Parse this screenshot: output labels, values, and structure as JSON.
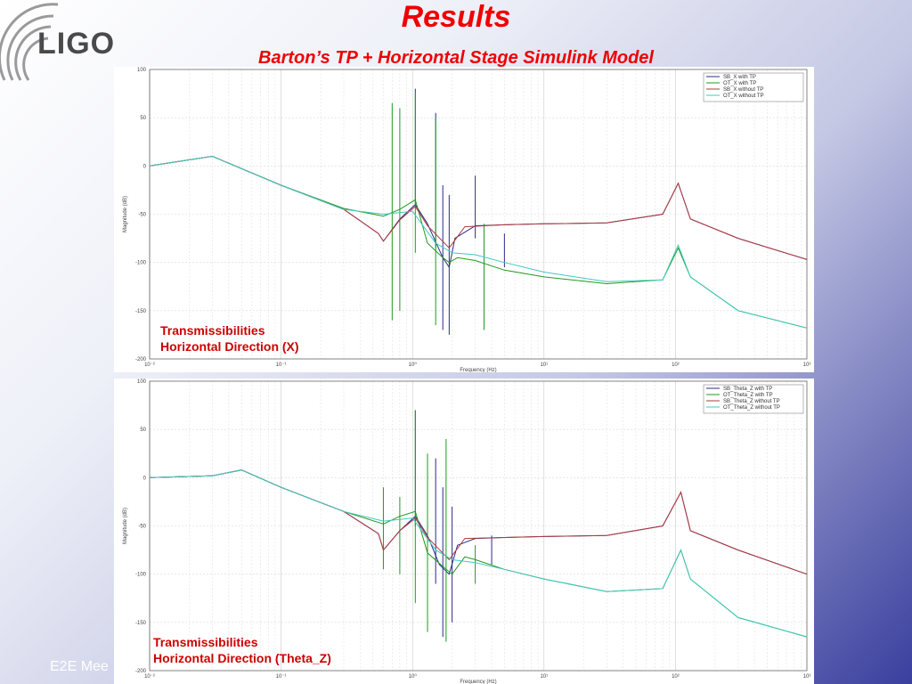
{
  "slide": {
    "logo": "LIGO",
    "title": "Results",
    "subtitle": "Barton’s TP + Horizontal Stage Simulink Model",
    "footer": "E2E Mee"
  },
  "colors": {
    "sb_with": "#2b2b8a",
    "ot_with": "#1f9a1f",
    "sb_without": "#b03a3a",
    "ot_without": "#3fc8c0",
    "title": "#ee0000"
  },
  "chart_data": [
    {
      "type": "line",
      "xscale": "log",
      "xlim": [
        0.01,
        1000
      ],
      "ylim": [
        -200,
        100
      ],
      "xticks": [
        "10⁻²",
        "10⁻¹",
        "10⁰",
        "10¹",
        "10²",
        "10³"
      ],
      "yticks": [
        "100",
        "50",
        "0",
        "-50",
        "-100",
        "-150",
        "-200"
      ],
      "xlabel": "Frequency (Hz)",
      "ylabel": "Magnitude (dB)",
      "grid": true,
      "legend_position": "top-right",
      "annotation": [
        "Transmissibilities",
        "Horizontal Direction (X)"
      ],
      "series": [
        {
          "name": "SB_X with TP",
          "color_key": "sb_with",
          "x": [
            0.01,
            0.03,
            0.1,
            0.3,
            0.55,
            0.6,
            0.8,
            1.05,
            1.3,
            1.7,
            1.9,
            2.1,
            3,
            5,
            10,
            30,
            80,
            105,
            130,
            300,
            1000
          ],
          "y": [
            0,
            10,
            -20,
            -45,
            -70,
            -78,
            -55,
            -40,
            -60,
            -95,
            -105,
            -75,
            -62,
            -61,
            -60,
            -59,
            -50,
            -18,
            -55,
            -75,
            -97
          ],
          "spikes": [
            [
              1.05,
              80,
              -42
            ],
            [
              1.5,
              55,
              -85
            ],
            [
              1.7,
              -20,
              -170
            ],
            [
              1.9,
              -30,
              -175
            ],
            [
              3,
              -10,
              -75
            ],
            [
              5,
              -70,
              -105
            ]
          ]
        },
        {
          "name": "OT_X with TP",
          "color_key": "ot_with",
          "x": [
            0.01,
            0.03,
            0.1,
            0.3,
            0.6,
            0.8,
            1.05,
            1.3,
            1.7,
            1.9,
            2.2,
            3,
            5,
            10,
            30,
            80,
            105,
            130,
            300,
            1000
          ],
          "y": [
            0,
            10,
            -20,
            -44,
            -52,
            -45,
            -35,
            -80,
            -95,
            -100,
            -95,
            -98,
            -108,
            -115,
            -122,
            -118,
            -85,
            -115,
            -150,
            -168
          ],
          "spikes": [
            [
              0.7,
              65,
              -160
            ],
            [
              0.8,
              60,
              -150
            ],
            [
              1.05,
              75,
              -90
            ],
            [
              1.5,
              50,
              -165
            ],
            [
              3.5,
              -60,
              -170
            ]
          ]
        },
        {
          "name": "SB_X without TP",
          "color_key": "sb_without",
          "x": [
            0.01,
            0.03,
            0.1,
            0.3,
            0.55,
            0.6,
            0.8,
            1.05,
            1.3,
            1.9,
            2.5,
            5,
            10,
            30,
            80,
            105,
            130,
            300,
            1000
          ],
          "y": [
            0,
            10,
            -20,
            -45,
            -70,
            -78,
            -56,
            -42,
            -62,
            -85,
            -63,
            -61,
            -60,
            -59,
            -50,
            -18,
            -55,
            -75,
            -97
          ]
        },
        {
          "name": "OT_X without TP",
          "color_key": "ot_without",
          "x": [
            0.01,
            0.03,
            0.1,
            0.3,
            0.6,
            1.0,
            1.5,
            2,
            3,
            5,
            10,
            30,
            80,
            105,
            130,
            300,
            1000
          ],
          "y": [
            0,
            10,
            -20,
            -45,
            -50,
            -47,
            -80,
            -90,
            -92,
            -100,
            -110,
            -120,
            -118,
            -82,
            -115,
            -150,
            -168
          ]
        }
      ]
    },
    {
      "type": "line",
      "xscale": "log",
      "xlim": [
        0.01,
        1000
      ],
      "ylim": [
        -200,
        100
      ],
      "xticks": [
        "10⁻²",
        "10⁻¹",
        "10⁰",
        "10¹",
        "10²",
        "10³"
      ],
      "yticks": [
        "100",
        "50",
        "0",
        "-50",
        "-100",
        "-150",
        "-200"
      ],
      "xlabel": "Frequency (Hz)",
      "ylabel": "Magnitude (dB)",
      "grid": true,
      "legend_position": "top-right",
      "annotation": [
        "Transmissibilities",
        "Horizontal Direction (Theta_Z)"
      ],
      "series": [
        {
          "name": "SB_Theta_Z with TP",
          "color_key": "sb_with",
          "x": [
            0.01,
            0.03,
            0.05,
            0.1,
            0.3,
            0.55,
            0.6,
            0.8,
            1.05,
            1.3,
            1.6,
            1.9,
            2.2,
            3,
            5,
            10,
            30,
            80,
            110,
            130,
            300,
            1000
          ],
          "y": [
            0,
            2,
            8,
            -10,
            -35,
            -58,
            -75,
            -55,
            -40,
            -60,
            -90,
            -100,
            -70,
            -63,
            -62,
            -61,
            -60,
            -50,
            -15,
            -55,
            -75,
            -100
          ],
          "spikes": [
            [
              1.05,
              70,
              -50
            ],
            [
              1.5,
              20,
              -110
            ],
            [
              1.7,
              -10,
              -165
            ],
            [
              2,
              -30,
              -150
            ],
            [
              4,
              -60,
              -90
            ]
          ]
        },
        {
          "name": "OT_Theta_Z with TP",
          "color_key": "ot_with",
          "x": [
            0.01,
            0.03,
            0.05,
            0.1,
            0.3,
            0.6,
            0.8,
            1.05,
            1.3,
            1.7,
            2,
            2.5,
            3,
            5,
            10,
            30,
            80,
            110,
            130,
            300,
            1000
          ],
          "y": [
            0,
            2,
            8,
            -10,
            -35,
            -48,
            -40,
            -35,
            -78,
            -92,
            -100,
            -82,
            -85,
            -95,
            -105,
            -118,
            -115,
            -75,
            -105,
            -145,
            -165
          ],
          "spikes": [
            [
              0.6,
              -10,
              -95
            ],
            [
              0.8,
              -20,
              -100
            ],
            [
              1.05,
              70,
              -130
            ],
            [
              1.3,
              25,
              -160
            ],
            [
              1.8,
              40,
              -170
            ],
            [
              3,
              -70,
              -110
            ]
          ]
        },
        {
          "name": "SB_Theta_Z without TP",
          "color_key": "sb_without",
          "x": [
            0.01,
            0.03,
            0.05,
            0.1,
            0.3,
            0.55,
            0.6,
            0.8,
            1.05,
            1.3,
            1.9,
            2.5,
            5,
            10,
            30,
            80,
            110,
            130,
            300,
            1000
          ],
          "y": [
            0,
            2,
            8,
            -10,
            -35,
            -58,
            -75,
            -55,
            -42,
            -62,
            -85,
            -63,
            -62,
            -61,
            -60,
            -50,
            -15,
            -55,
            -75,
            -100
          ]
        },
        {
          "name": "OT_Theta_Z without TP",
          "color_key": "ot_without",
          "x": [
            0.01,
            0.03,
            0.05,
            0.1,
            0.3,
            0.6,
            1.0,
            1.5,
            2,
            3,
            5,
            10,
            30,
            80,
            110,
            130,
            300,
            1000
          ],
          "y": [
            0,
            2,
            8,
            -10,
            -35,
            -45,
            -42,
            -75,
            -85,
            -88,
            -95,
            -105,
            -118,
            -115,
            -75,
            -105,
            -145,
            -165
          ]
        }
      ]
    }
  ]
}
